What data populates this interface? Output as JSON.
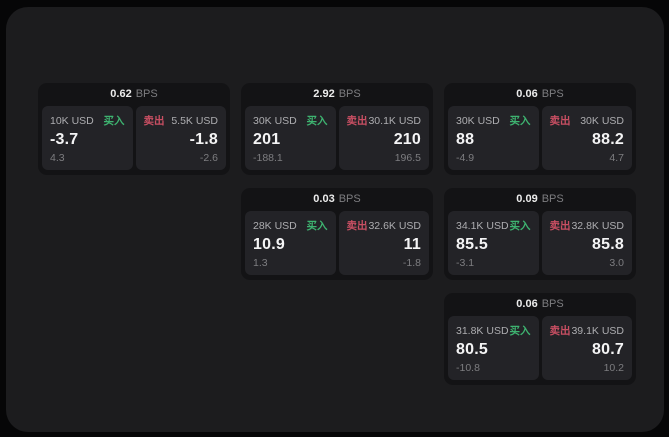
{
  "labels": {
    "bps_unit": "BPS",
    "buy": "买入",
    "sell": "卖出"
  },
  "colors": {
    "window_bg": "#1c1c1e",
    "card_bg": "#131315",
    "panel_bg": "#232327",
    "buy_green": "#3eb370",
    "sell_red": "#c94f63",
    "value_white": "#f4f4f5",
    "muted_gray": "#7d7d80"
  },
  "cards": [
    {
      "bps": "0.62",
      "buy": {
        "amount": "10K USD",
        "price": "-3.7",
        "delta": "4.3"
      },
      "sell": {
        "amount": "5.5K USD",
        "price": "-1.8",
        "delta": "-2.6"
      }
    },
    {
      "bps": "2.92",
      "buy": {
        "amount": "30K USD",
        "price": "201",
        "delta": "-188.1"
      },
      "sell": {
        "amount": "30.1K USD",
        "price": "210",
        "delta": "196.5"
      }
    },
    {
      "bps": "0.06",
      "buy": {
        "amount": "30K USD",
        "price": "88",
        "delta": "-4.9"
      },
      "sell": {
        "amount": "30K USD",
        "price": "88.2",
        "delta": "4.7"
      }
    },
    {
      "bps": "0.03",
      "buy": {
        "amount": "28K USD",
        "price": "10.9",
        "delta": "1.3"
      },
      "sell": {
        "amount": "32.6K USD",
        "price": "11",
        "delta": "-1.8"
      }
    },
    {
      "bps": "0.09",
      "buy": {
        "amount": "34.1K USD",
        "price": "85.5",
        "delta": "-3.1"
      },
      "sell": {
        "amount": "32.8K USD",
        "price": "85.8",
        "delta": "3.0"
      }
    },
    {
      "bps": "0.06",
      "buy": {
        "amount": "31.8K USD",
        "price": "80.5",
        "delta": "-10.8"
      },
      "sell": {
        "amount": "39.1K USD",
        "price": "80.7",
        "delta": "10.2"
      }
    }
  ]
}
